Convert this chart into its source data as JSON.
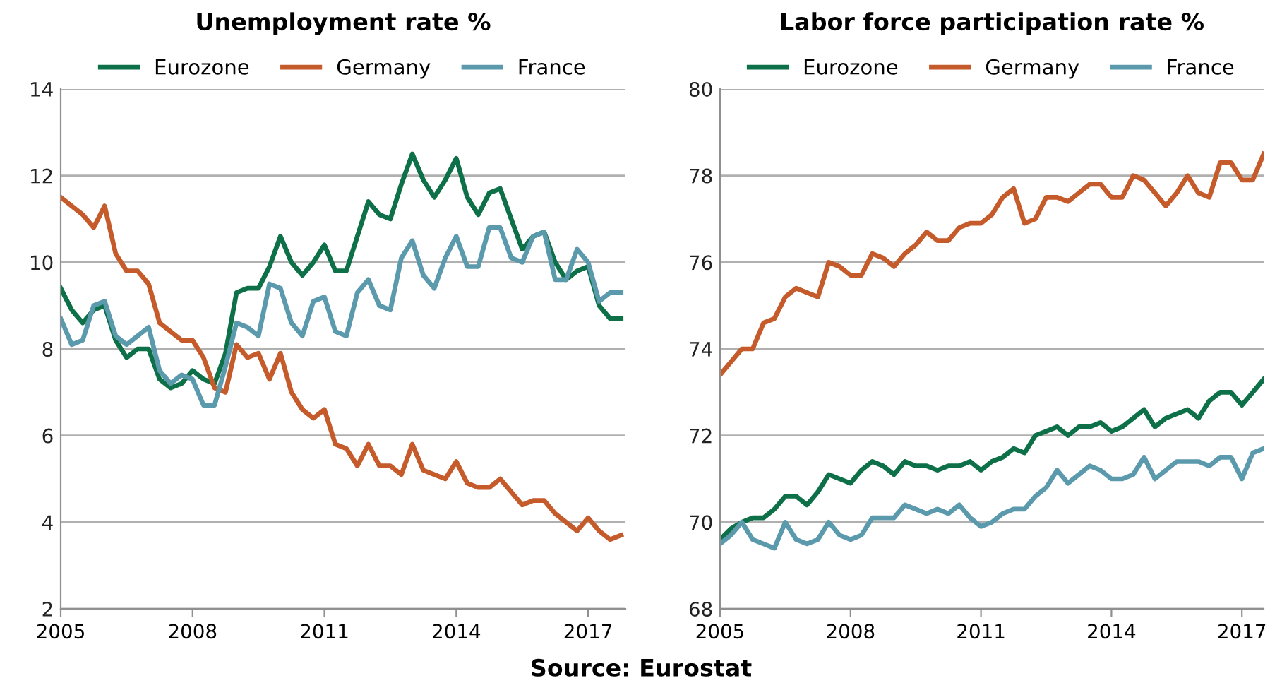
{
  "chart_data": [
    {
      "type": "line",
      "title": "Unemployment rate %",
      "x": [
        2005,
        2005.25,
        2005.5,
        2005.75,
        2006,
        2006.25,
        2006.5,
        2006.75,
        2007,
        2007.25,
        2007.5,
        2007.75,
        2008,
        2008.25,
        2008.5,
        2008.75,
        2009,
        2009.25,
        2009.5,
        2009.75,
        2010,
        2010.25,
        2010.5,
        2010.75,
        2011,
        2011.25,
        2011.5,
        2011.75,
        2012,
        2012.25,
        2012.5,
        2012.75,
        2013,
        2013.25,
        2013.5,
        2013.75,
        2014,
        2014.25,
        2014.5,
        2014.75,
        2015,
        2015.25,
        2015.5,
        2015.75,
        2016,
        2016.25,
        2016.5,
        2016.75,
        2017,
        2017.25,
        2017.5,
        2017.75
      ],
      "series": [
        {
          "name": "Eurozone",
          "color": "#0e7048",
          "values": [
            9.4,
            8.9,
            8.6,
            8.9,
            9.0,
            8.2,
            7.8,
            8.0,
            8.0,
            7.3,
            7.1,
            7.2,
            7.5,
            7.3,
            7.2,
            7.9,
            9.3,
            9.4,
            9.4,
            9.9,
            10.6,
            10.0,
            9.7,
            10.0,
            10.4,
            9.8,
            9.8,
            10.6,
            11.4,
            11.1,
            11.0,
            11.8,
            12.5,
            11.9,
            11.5,
            11.9,
            12.4,
            11.5,
            11.1,
            11.6,
            11.7,
            11.0,
            10.3,
            10.6,
            10.7,
            10.0,
            9.6,
            9.8,
            9.9,
            9.0,
            8.7,
            8.7
          ]
        },
        {
          "name": "Germany",
          "color": "#c55a2a",
          "values": [
            11.5,
            11.3,
            11.1,
            10.8,
            11.3,
            10.2,
            9.8,
            9.8,
            9.5,
            8.6,
            8.4,
            8.2,
            8.2,
            7.8,
            7.1,
            7.0,
            8.1,
            7.8,
            7.9,
            7.3,
            7.9,
            7.0,
            6.6,
            6.4,
            6.6,
            5.8,
            5.7,
            5.3,
            5.8,
            5.3,
            5.3,
            5.1,
            5.8,
            5.2,
            5.1,
            5.0,
            5.4,
            4.9,
            4.8,
            4.8,
            5.0,
            4.7,
            4.4,
            4.5,
            4.5,
            4.2,
            4.0,
            3.8,
            4.1,
            3.8,
            3.6,
            3.7
          ]
        },
        {
          "name": "France",
          "color": "#5b9aad",
          "values": [
            8.7,
            8.1,
            8.2,
            9.0,
            9.1,
            8.3,
            8.1,
            8.3,
            8.5,
            7.5,
            7.2,
            7.4,
            7.3,
            6.7,
            6.7,
            7.6,
            8.6,
            8.5,
            8.3,
            9.5,
            9.4,
            8.6,
            8.3,
            9.1,
            9.2,
            8.4,
            8.3,
            9.3,
            9.6,
            9.0,
            8.9,
            10.1,
            10.5,
            9.7,
            9.4,
            10.1,
            10.6,
            9.9,
            9.9,
            10.8,
            10.8,
            10.1,
            10.0,
            10.6,
            10.7,
            9.6,
            9.6,
            10.3,
            10.0,
            9.1,
            9.3,
            9.3
          ]
        }
      ],
      "xlim": [
        2005,
        2017.85
      ],
      "xticks": [
        2005,
        2008,
        2011,
        2014,
        2017
      ],
      "ylim": [
        2,
        14
      ],
      "yticks": [
        2,
        4,
        6,
        8,
        10,
        12,
        14
      ],
      "grid": "y",
      "legend": "top",
      "marker": "none",
      "line_style": "solid"
    },
    {
      "type": "line",
      "title": "Labor force participation rate %",
      "x": [
        2005,
        2005.25,
        2005.5,
        2005.75,
        2006,
        2006.25,
        2006.5,
        2006.75,
        2007,
        2007.25,
        2007.5,
        2007.75,
        2008,
        2008.25,
        2008.5,
        2008.75,
        2009,
        2009.25,
        2009.5,
        2009.75,
        2010,
        2010.25,
        2010.5,
        2010.75,
        2011,
        2011.25,
        2011.5,
        2011.75,
        2012,
        2012.25,
        2012.5,
        2012.75,
        2013,
        2013.25,
        2013.5,
        2013.75,
        2014,
        2014.25,
        2014.5,
        2014.75,
        2015,
        2015.25,
        2015.5,
        2015.75,
        2016,
        2016.25,
        2016.5,
        2016.75,
        2017,
        2017.25,
        2017.5
      ],
      "series": [
        {
          "name": "Eurozone",
          "color": "#0e7048",
          "values": [
            69.6,
            69.85,
            70.0,
            70.1,
            70.1,
            70.3,
            70.6,
            70.6,
            70.4,
            70.7,
            71.1,
            71.0,
            70.9,
            71.2,
            71.4,
            71.3,
            71.1,
            71.4,
            71.3,
            71.3,
            71.2,
            71.3,
            71.3,
            71.4,
            71.2,
            71.4,
            71.5,
            71.7,
            71.6,
            72.0,
            72.1,
            72.2,
            72.0,
            72.2,
            72.2,
            72.3,
            72.1,
            72.2,
            72.4,
            72.6,
            72.2,
            72.4,
            72.5,
            72.6,
            72.4,
            72.8,
            73.0,
            73.0,
            72.7,
            73.0,
            73.3
          ]
        },
        {
          "name": "Germany",
          "color": "#c55a2a",
          "values": [
            73.4,
            73.7,
            74.0,
            74.0,
            74.6,
            74.7,
            75.2,
            75.4,
            75.3,
            75.2,
            76.0,
            75.9,
            75.7,
            75.7,
            76.2,
            76.1,
            75.9,
            76.2,
            76.4,
            76.7,
            76.5,
            76.5,
            76.8,
            76.9,
            76.9,
            77.1,
            77.5,
            77.7,
            76.9,
            77.0,
            77.5,
            77.5,
            77.4,
            77.6,
            77.8,
            77.8,
            77.5,
            77.5,
            78.0,
            77.9,
            77.6,
            77.3,
            77.6,
            78.0,
            77.6,
            77.5,
            78.3,
            78.3,
            77.9,
            77.9,
            78.5
          ]
        },
        {
          "name": "France",
          "color": "#5b9aad",
          "values": [
            69.5,
            69.7,
            70.0,
            69.6,
            69.5,
            69.4,
            70.0,
            69.6,
            69.5,
            69.6,
            70.0,
            69.7,
            69.6,
            69.7,
            70.1,
            70.1,
            70.1,
            70.4,
            70.3,
            70.2,
            70.3,
            70.2,
            70.4,
            70.1,
            69.9,
            70.0,
            70.2,
            70.3,
            70.3,
            70.6,
            70.8,
            71.2,
            70.9,
            71.1,
            71.3,
            71.2,
            71.0,
            71.0,
            71.1,
            71.5,
            71.0,
            71.2,
            71.4,
            71.4,
            71.4,
            71.3,
            71.5,
            71.5,
            71.0,
            71.6,
            71.7
          ]
        }
      ],
      "xlim": [
        2005,
        2017.5
      ],
      "xticks": [
        2005,
        2008,
        2011,
        2014,
        2017
      ],
      "ylim": [
        68,
        80
      ],
      "yticks": [
        68,
        70,
        72,
        74,
        76,
        78,
        80
      ],
      "grid": "y",
      "legend": "top",
      "marker": "none",
      "line_style": "solid",
      "annotations": [
        "Source: Eurostat"
      ]
    }
  ]
}
